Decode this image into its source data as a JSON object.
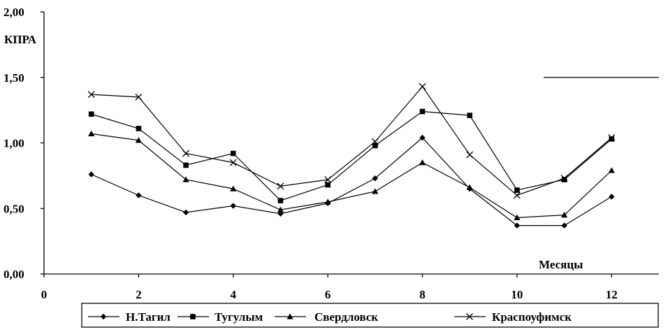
{
  "chart_data": {
    "type": "line",
    "title": "",
    "xlabel": "Месяцы",
    "ylabel": "КПРА",
    "x_ticks": [
      "0",
      "2",
      "4",
      "6",
      "8",
      "10",
      "12"
    ],
    "x_tick_values": [
      0,
      2,
      4,
      6,
      8,
      10,
      12
    ],
    "y_ticks": [
      "0,00",
      "0,50",
      "1,00",
      "1,50",
      "2,00"
    ],
    "y_tick_values": [
      0,
      0.5,
      1,
      1.5,
      2
    ],
    "xlim": [
      0,
      13
    ],
    "ylim": [
      0,
      2
    ],
    "grid": false,
    "legend_position": "bottom",
    "x": [
      1,
      2,
      3,
      4,
      5,
      6,
      7,
      8,
      9,
      10,
      11,
      12
    ],
    "series": [
      {
        "name": "Н.Тагил",
        "marker": "diamond",
        "values": [
          0.76,
          0.6,
          0.47,
          0.52,
          0.46,
          0.54,
          0.73,
          1.04,
          0.65,
          0.37,
          0.37,
          0.59
        ]
      },
      {
        "name": "Тугулым",
        "marker": "square",
        "values": [
          1.22,
          1.11,
          0.83,
          0.92,
          0.56,
          0.68,
          0.98,
          1.24,
          1.21,
          0.64,
          0.72,
          1.03
        ]
      },
      {
        "name": "Свердловск",
        "marker": "triangle",
        "values": [
          1.07,
          1.02,
          0.72,
          0.65,
          0.49,
          0.55,
          0.63,
          0.85,
          0.66,
          0.43,
          0.45,
          0.79
        ]
      },
      {
        "name": "Краспоуфимск",
        "marker": "x",
        "values": [
          1.37,
          1.35,
          0.92,
          0.85,
          0.67,
          0.72,
          1.01,
          1.43,
          0.91,
          0.6,
          0.73,
          1.04
        ]
      }
    ]
  }
}
